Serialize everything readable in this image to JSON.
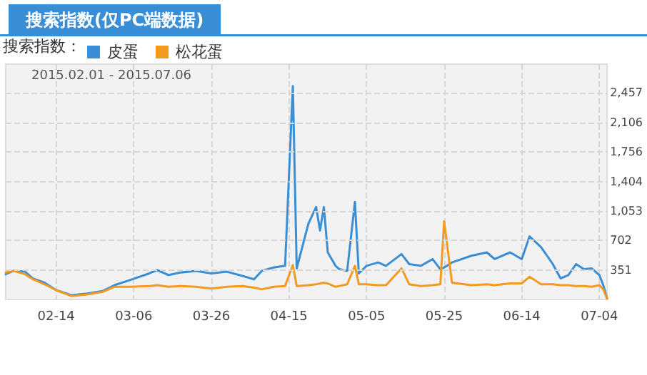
{
  "chart_data": {
    "type": "line",
    "title": "搜索指数(仅PC端数据)",
    "subtitle": "2015.02.01 - 2015.07.06",
    "legend_title": "搜索指数：",
    "x": [
      "2015-02-01",
      "2015-02-03",
      "2015-02-06",
      "2015-02-08",
      "2015-02-11",
      "2015-02-14",
      "2015-02-18",
      "2015-02-22",
      "2015-02-26",
      "2015-03-01",
      "2015-03-05",
      "2015-03-10",
      "2015-03-12",
      "2015-03-15",
      "2015-03-18",
      "2015-03-22",
      "2015-03-26",
      "2015-03-30",
      "2015-04-03",
      "2015-04-06",
      "2015-04-08",
      "2015-04-11",
      "2015-04-14",
      "2015-04-16",
      "2015-04-17",
      "2015-04-20",
      "2015-04-22",
      "2015-04-23",
      "2015-04-24",
      "2015-04-25",
      "2015-04-27",
      "2015-04-28",
      "2015-04-30",
      "2015-05-02",
      "2015-05-03",
      "2015-05-05",
      "2015-05-08",
      "2015-05-10",
      "2015-05-14",
      "2015-05-16",
      "2015-05-19",
      "2015-05-22",
      "2015-05-24",
      "2015-05-25",
      "2015-05-27",
      "2015-06-01",
      "2015-06-05",
      "2015-06-07",
      "2015-06-11",
      "2015-06-14",
      "2015-06-16",
      "2015-06-19",
      "2015-06-22",
      "2015-06-24",
      "2015-06-26",
      "2015-06-28",
      "2015-06-30",
      "2015-07-02",
      "2015-07-04",
      "2015-07-05",
      "2015-07-06"
    ],
    "series": [
      {
        "name": "皮蛋",
        "color": "#3a8ed5",
        "values": [
          300,
          340,
          330,
          250,
          200,
          110,
          50,
          70,
          100,
          170,
          230,
          310,
          350,
          290,
          320,
          340,
          310,
          330,
          280,
          240,
          340,
          380,
          400,
          2540,
          370,
          900,
          1100,
          820,
          1100,
          560,
          400,
          360,
          340,
          1160,
          310,
          400,
          440,
          400,
          540,
          420,
          400,
          480,
          360,
          380,
          440,
          520,
          560,
          480,
          560,
          480,
          750,
          620,
          420,
          250,
          290,
          420,
          360,
          370,
          290,
          170,
          10
        ]
      },
      {
        "name": "松花蛋",
        "color": "#f39a1f",
        "values": [
          320,
          340,
          300,
          240,
          180,
          110,
          40,
          60,
          90,
          150,
          150,
          160,
          170,
          150,
          160,
          150,
          130,
          150,
          160,
          140,
          120,
          150,
          160,
          410,
          160,
          170,
          180,
          190,
          200,
          190,
          150,
          160,
          180,
          400,
          180,
          180,
          170,
          170,
          370,
          180,
          160,
          170,
          180,
          930,
          200,
          170,
          180,
          170,
          190,
          190,
          270,
          180,
          180,
          170,
          170,
          160,
          160,
          150,
          170,
          120,
          10
        ]
      }
    ],
    "xlim": [
      "2015-02-01",
      "2015-07-06"
    ],
    "xticks": [
      {
        "value": "2015-02-14",
        "label": "02-14"
      },
      {
        "value": "2015-03-06",
        "label": "03-06"
      },
      {
        "value": "2015-03-26",
        "label": "03-26"
      },
      {
        "value": "2015-04-15",
        "label": "04-15"
      },
      {
        "value": "2015-05-05",
        "label": "05-05"
      },
      {
        "value": "2015-05-25",
        "label": "05-25"
      },
      {
        "value": "2015-06-14",
        "label": "06-14"
      },
      {
        "value": "2015-07-04",
        "label": "07-04"
      }
    ],
    "ylim": [
      0,
      2800
    ],
    "yticks": [
      {
        "value": 351,
        "label": "351"
      },
      {
        "value": 702,
        "label": "702"
      },
      {
        "value": 1053,
        "label": "1,053"
      },
      {
        "value": 1404,
        "label": "1,404"
      },
      {
        "value": 1756,
        "label": "1,756"
      },
      {
        "value": 2106,
        "label": "2,106"
      },
      {
        "value": 2457,
        "label": "2,457"
      }
    ],
    "grid": true,
    "legend": "top left",
    "marker": "none",
    "line_style": "solid"
  }
}
